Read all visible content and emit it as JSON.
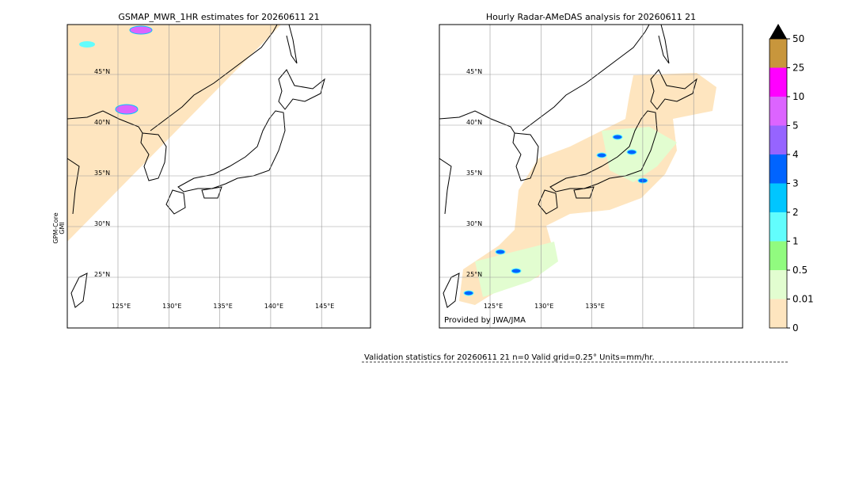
{
  "panels": [
    {
      "title": "GSMAP_MWR_1HR estimates for 20260611 21",
      "lat_labels": [
        "45°N",
        "40°N",
        "35°N",
        "30°N",
        "25°N"
      ],
      "lon_labels": [
        "125°E",
        "130°E",
        "135°E",
        "140°E",
        "145°E"
      ],
      "side_label_lines": [
        "GPM-Core",
        "GMI"
      ]
    },
    {
      "title": "Hourly Radar-AMeDAS analysis for 20260611 21",
      "lat_labels": [
        "45°N",
        "40°N",
        "35°N",
        "30°N",
        "25°N"
      ],
      "lon_labels": [
        "125°E",
        "130°E",
        "135°E"
      ],
      "credit": "Provided by JWA/JMA"
    }
  ],
  "colorbar": {
    "labels": [
      0,
      0.01,
      0.5,
      1,
      2,
      3,
      4,
      5,
      10,
      25,
      50
    ],
    "colors": [
      "#fee5bf",
      "#e2fdd0",
      "#91fb7f",
      "#62fdfd",
      "#00c6ff",
      "#0064ff",
      "#9664ff",
      "#dc64ff",
      "#ff00ff",
      "#c8963c"
    ],
    "extend_color": "#000000"
  },
  "validation": "Validation statistics for 20260611 21  n=0 Valid  grid=0.25° Units=mm/hr."
}
